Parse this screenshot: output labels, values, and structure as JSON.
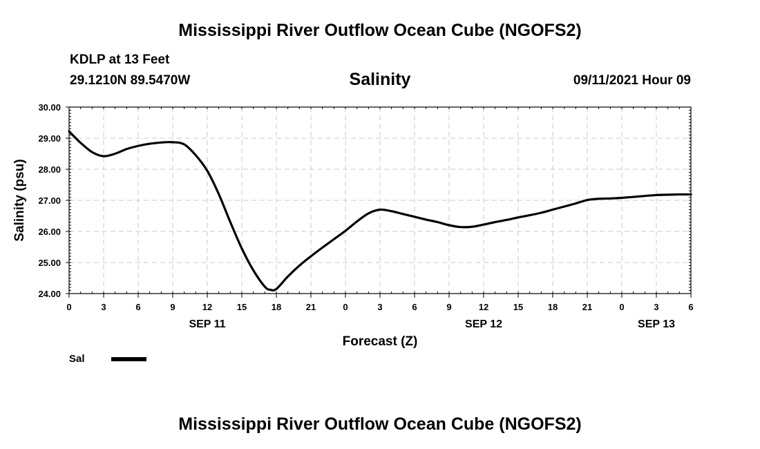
{
  "header": {
    "title": "Mississippi River Outflow Ocean Cube (NGOFS2)",
    "footer_title": "Mississippi River Outflow Ocean Cube (NGOFS2)",
    "station": "KDLP at 13 Feet",
    "coords": "29.1210N  89.5470W",
    "variable": "Salinity",
    "datetime": "09/11/2021 Hour 09"
  },
  "chart_data": {
    "type": "line",
    "title": "Salinity",
    "xlabel": "Forecast (Z)",
    "ylabel": "Salinity (psu)",
    "xlim": [
      0,
      54
    ],
    "ylim": [
      24.0,
      30.0
    ],
    "grid": true,
    "y_ticks": [
      "24.00",
      "25.00",
      "26.00",
      "27.00",
      "28.00",
      "29.00",
      "30.00"
    ],
    "x_ticks": [
      {
        "hour": 0,
        "label": "0"
      },
      {
        "hour": 3,
        "label": "3"
      },
      {
        "hour": 6,
        "label": "6"
      },
      {
        "hour": 9,
        "label": "9"
      },
      {
        "hour": 12,
        "label": "12"
      },
      {
        "hour": 15,
        "label": "15"
      },
      {
        "hour": 18,
        "label": "18"
      },
      {
        "hour": 21,
        "label": "21"
      },
      {
        "hour": 24,
        "label": "0"
      },
      {
        "hour": 27,
        "label": "3"
      },
      {
        "hour": 30,
        "label": "6"
      },
      {
        "hour": 33,
        "label": "9"
      },
      {
        "hour": 36,
        "label": "12"
      },
      {
        "hour": 39,
        "label": "15"
      },
      {
        "hour": 42,
        "label": "18"
      },
      {
        "hour": 45,
        "label": "21"
      },
      {
        "hour": 48,
        "label": "0"
      },
      {
        "hour": 51,
        "label": "3"
      },
      {
        "hour": 54,
        "label": "6"
      }
    ],
    "date_labels": [
      {
        "hour": 12,
        "label": "SEP 11"
      },
      {
        "hour": 36,
        "label": "SEP 12"
      },
      {
        "hour": 51,
        "label": "SEP 13"
      }
    ],
    "legend": {
      "label": "Sal",
      "placement": "bottom-left"
    },
    "series": [
      {
        "name": "Sal",
        "color": "#000000",
        "x": [
          0,
          1,
          2,
          3,
          4,
          5,
          6,
          7,
          8,
          9,
          10,
          11,
          12,
          13,
          14,
          15,
          16,
          17,
          17.5,
          18,
          19,
          20,
          21,
          22,
          23,
          24,
          25,
          26,
          27,
          28,
          29,
          30,
          31,
          32,
          33,
          34,
          35,
          36,
          37,
          38,
          39,
          40,
          41,
          42,
          43,
          44,
          45,
          46,
          47,
          48,
          49,
          50,
          51,
          52,
          53,
          54
        ],
        "values": [
          29.22,
          28.85,
          28.55,
          28.42,
          28.5,
          28.65,
          28.75,
          28.82,
          28.86,
          28.87,
          28.8,
          28.45,
          27.95,
          27.2,
          26.3,
          25.45,
          24.75,
          24.22,
          24.12,
          24.15,
          24.55,
          24.9,
          25.2,
          25.48,
          25.75,
          26.02,
          26.32,
          26.58,
          26.7,
          26.65,
          26.56,
          26.47,
          26.38,
          26.3,
          26.2,
          26.14,
          26.15,
          26.22,
          26.3,
          26.37,
          26.45,
          26.52,
          26.6,
          26.7,
          26.8,
          26.9,
          27.01,
          27.05,
          27.06,
          27.08,
          27.11,
          27.14,
          27.17,
          27.18,
          27.19,
          27.19
        ]
      }
    ]
  }
}
